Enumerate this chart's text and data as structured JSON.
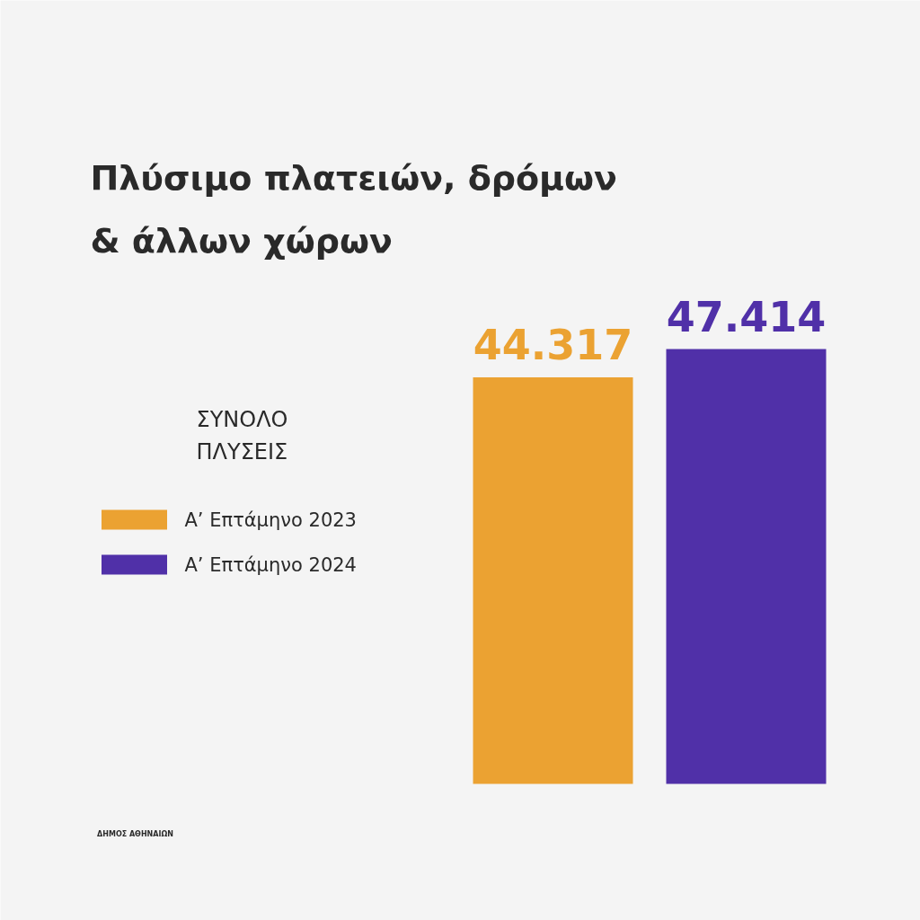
{
  "chart_data": {
    "type": "bar",
    "title": "Πλύσιμο πλατειών, δρόμων\n& άλλων χώρων",
    "categories": [
      null
    ],
    "series": [
      {
        "name": "Α’ Επτάμηνο 2023",
        "color": "#eba232",
        "values": [
          44317
        ],
        "value_labels": [
          "44.317"
        ]
      },
      {
        "name": "Α’ Επτάμηνο 2024",
        "color": "#5030a8",
        "values": [
          47414
        ],
        "value_labels": [
          "47.414"
        ]
      }
    ],
    "legend_title": "ΣΥΝΟΛΟ\nΠΛΥΣΕΙΣ",
    "legend": "left",
    "grid": false,
    "annotations": [
      "ΔΗΜΟΣ ΑΘΗΝΑΙΩΝ"
    ]
  }
}
